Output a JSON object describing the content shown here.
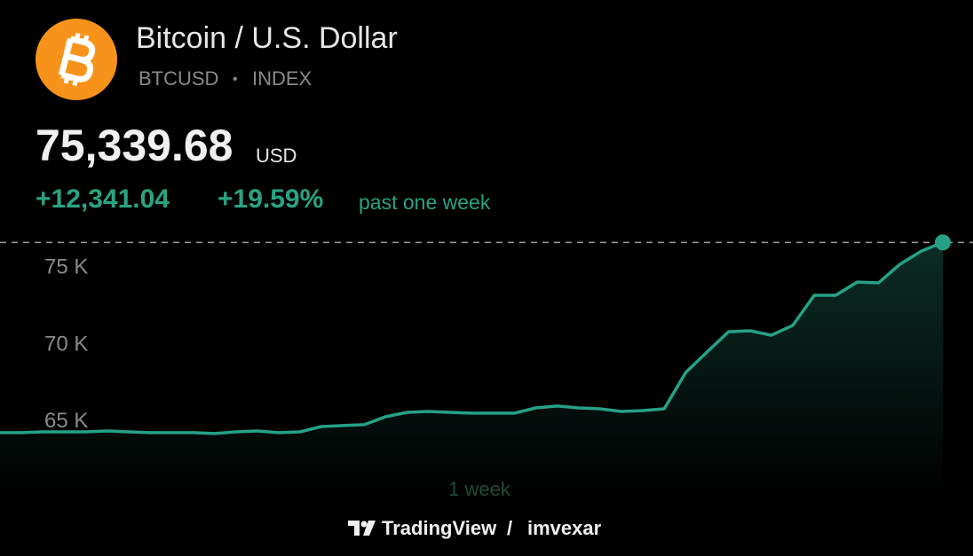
{
  "header": {
    "title": "Bitcoin / U.S. Dollar",
    "symbol": "BTCUSD",
    "symbol_separator": "•",
    "exchange": "INDEX",
    "price": "75,339.68",
    "currency": "USD",
    "change": "+12,341.04",
    "change_percent": "+19.59%",
    "period": "past one week"
  },
  "chart_data": {
    "type": "line",
    "x_label": "1 week",
    "color": "#26a185",
    "values": [
      62960,
      62960,
      63010,
      63010,
      63010,
      63070,
      63010,
      62960,
      62960,
      62960,
      62900,
      63010,
      63070,
      62960,
      63010,
      63360,
      63420,
      63480,
      64000,
      64280,
      64340,
      64280,
      64230,
      64230,
      64230,
      64570,
      64690,
      64570,
      64510,
      64340,
      64400,
      64510,
      66880,
      68210,
      69530,
      69590,
      69300,
      69940,
      71900,
      71900,
      72760,
      72710,
      73920,
      74780,
      75339.68
    ],
    "ylim": [
      58800,
      76400
    ],
    "yticks": [
      {
        "value": 65000,
        "label": "65 K"
      },
      {
        "value": 70000,
        "label": "70 K"
      },
      {
        "value": 75000,
        "label": "75 K"
      }
    ]
  },
  "footer": {
    "brand": "TradingView",
    "separator": "/",
    "author": "imvexar"
  }
}
